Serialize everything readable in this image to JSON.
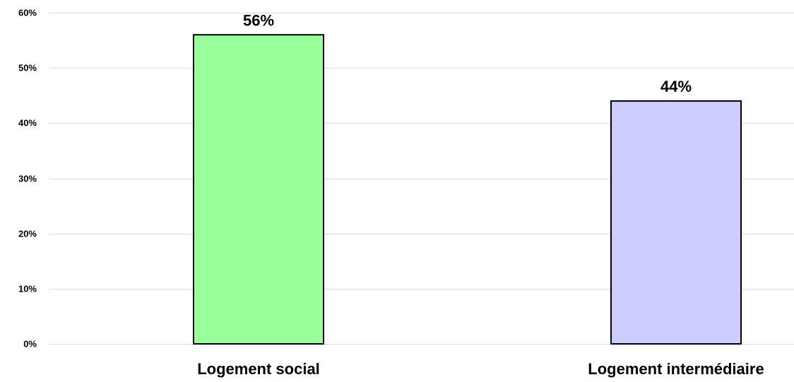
{
  "chart_data": {
    "type": "bar",
    "categories": [
      "Logement social",
      "Logement intermédiaire"
    ],
    "values": [
      56,
      44
    ],
    "value_labels": [
      "56%",
      "44%"
    ],
    "bar_colors": [
      "#99ff99",
      "#ccccff"
    ],
    "bar_border_color": "#000000",
    "gridline_color": "#d9d9d9",
    "ylim": [
      0,
      60
    ],
    "y_ticks": [
      0,
      10,
      20,
      30,
      40,
      50,
      60
    ],
    "y_tick_labels": [
      "0%",
      "10%",
      "20%",
      "30%",
      "40%",
      "50%",
      "60%"
    ],
    "grid": true,
    "legend": "none",
    "title": "",
    "xlabel": "",
    "ylabel": ""
  }
}
